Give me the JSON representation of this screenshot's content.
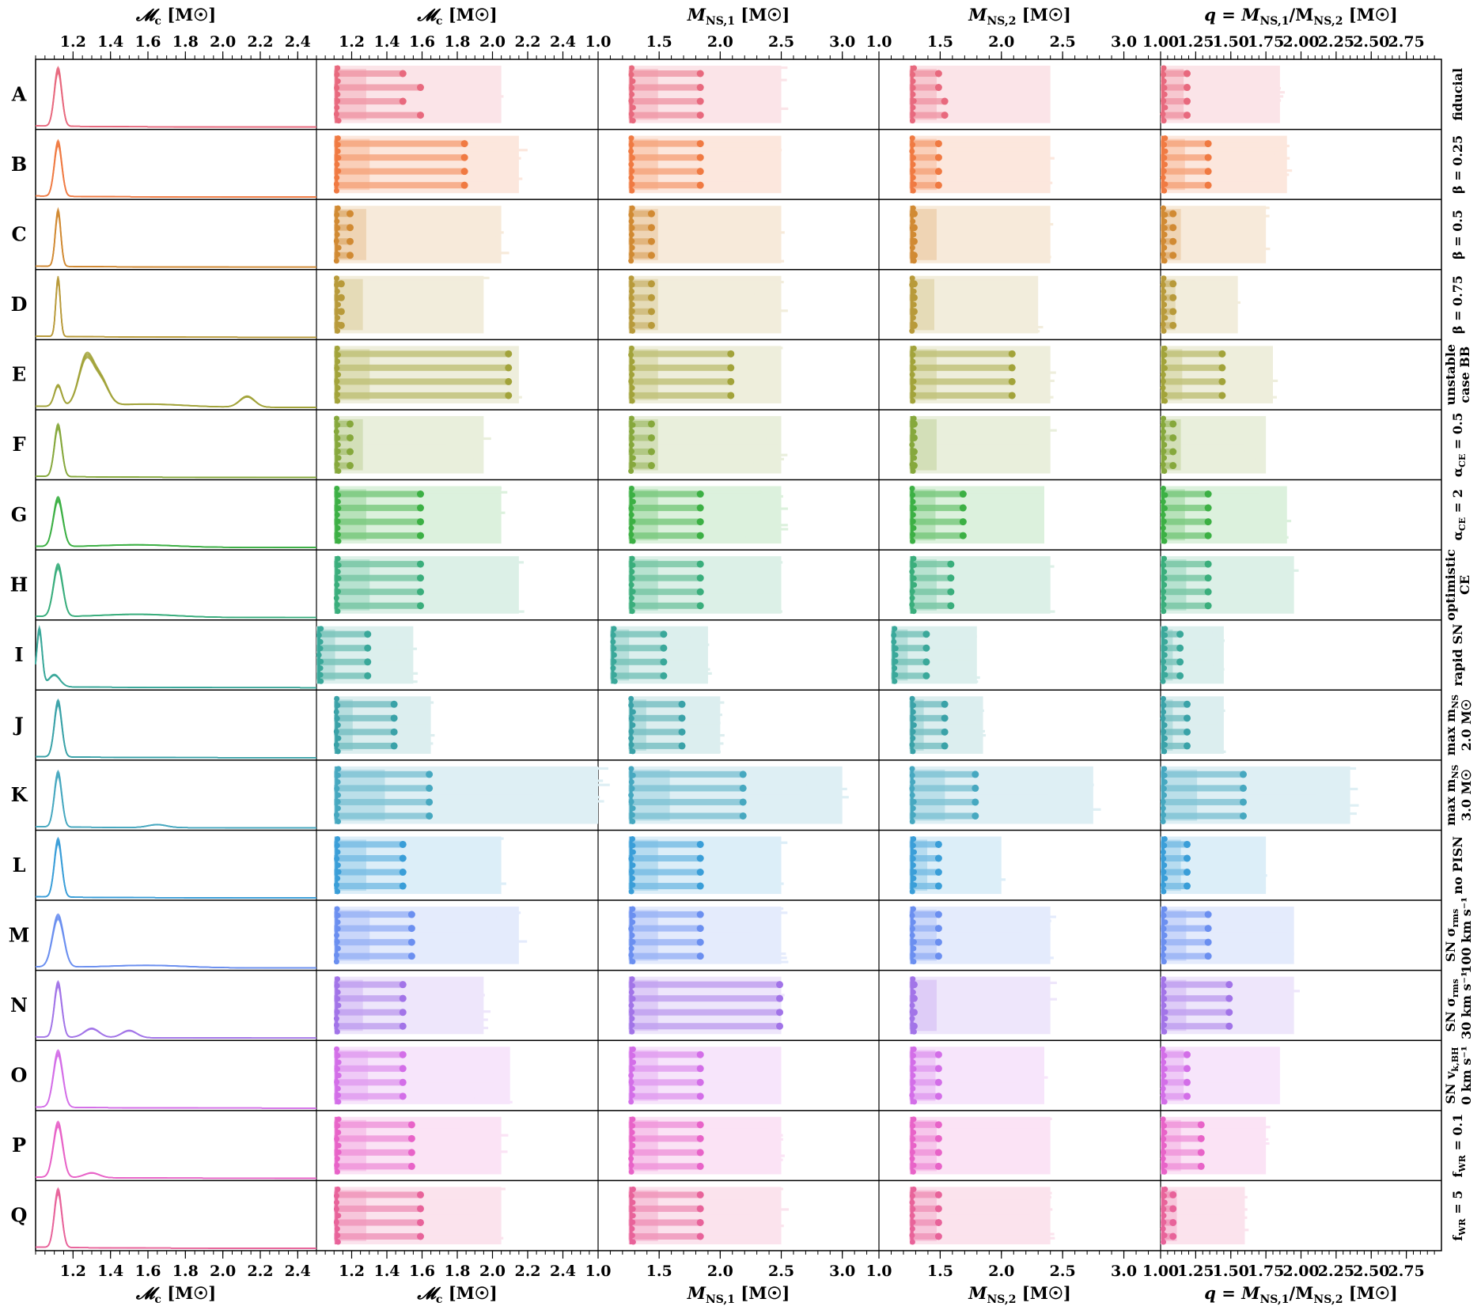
{
  "figure": {
    "rows": [
      {
        "letter": "A",
        "label_lines": [
          "fiducial"
        ],
        "color": "#e8697e",
        "peak": 1.12,
        "peak_height": 0.95,
        "spread": 0.02,
        "extra_peaks": [],
        "mc_range": [
          1.1,
          2.05
        ],
        "m1_range": [
          1.25,
          2.5
        ],
        "m2_range": [
          1.25,
          2.4
        ],
        "q_range": [
          1.0,
          1.85
        ],
        "m1_dot_x": 1.48,
        "m1_dot_x2": [
          1.48
        ],
        "bar_ends_mc": [
          1.5,
          1.6,
          1.5,
          1.6
        ],
        "bar_ends_m1": [
          1.85,
          1.85,
          1.85,
          1.85
        ],
        "bar_ends_m2": [
          1.5,
          1.5,
          1.55,
          1.55
        ],
        "bar_ends_q": [
          1.2,
          1.2,
          1.2,
          1.2
        ]
      },
      {
        "letter": "B",
        "label_lines": [
          "β = 0.25"
        ],
        "color": "#f07a42",
        "peak": 1.12,
        "peak_height": 0.9,
        "spread": 0.02,
        "extra_peaks": [],
        "mc_range": [
          1.1,
          2.15
        ],
        "m1_range": [
          1.25,
          2.5
        ],
        "m2_range": [
          1.25,
          2.4
        ],
        "q_range": [
          1.0,
          1.9
        ],
        "bar_ends_mc": [
          1.85,
          1.85,
          1.85,
          1.85
        ],
        "bar_ends_m1": [
          1.85,
          1.85,
          1.85,
          1.85
        ],
        "bar_ends_m2": [
          1.5,
          1.5,
          1.5,
          1.5
        ],
        "bar_ends_q": [
          1.35,
          1.35,
          1.35,
          1.35
        ]
      },
      {
        "letter": "C",
        "label_lines": [
          "β = 0.5"
        ],
        "color": "#d18a33",
        "peak": 1.12,
        "peak_height": 0.92,
        "spread": 0.015,
        "extra_peaks": [],
        "mc_range": [
          1.1,
          2.05
        ],
        "m1_range": [
          1.25,
          2.5
        ],
        "m2_range": [
          1.25,
          2.4
        ],
        "q_range": [
          1.0,
          1.75
        ],
        "bar_ends_mc": [
          1.2,
          1.2,
          1.2,
          1.2
        ],
        "bar_ends_m1": [
          1.45,
          1.45,
          1.45,
          1.45
        ],
        "bar_ends_m2": [
          1.3,
          1.3,
          1.3,
          1.3
        ],
        "bar_ends_q": [
          1.1,
          1.1,
          1.1,
          1.1
        ]
      },
      {
        "letter": "D",
        "label_lines": [
          "β = 0.75"
        ],
        "color": "#b89a3a",
        "peak": 1.12,
        "peak_height": 0.97,
        "spread": 0.012,
        "extra_peaks": [],
        "mc_range": [
          1.1,
          1.95
        ],
        "m1_range": [
          1.25,
          2.5
        ],
        "m2_range": [
          1.25,
          2.3
        ],
        "q_range": [
          1.0,
          1.55
        ],
        "bar_ends_mc": [
          1.15,
          1.15,
          1.15,
          1.15
        ],
        "bar_ends_m1": [
          1.45,
          1.45,
          1.45,
          1.45
        ],
        "bar_ends_m2": [
          1.3,
          1.3,
          1.3,
          1.3
        ],
        "bar_ends_q": [
          1.1,
          1.1,
          1.1,
          1.1
        ]
      },
      {
        "letter": "E",
        "label_lines": [
          "unstable",
          "case BB"
        ],
        "color": "#a2a33a",
        "peak": 1.27,
        "peak_height": 0.8,
        "spread": 0.04,
        "extra_peaks": [
          [
            1.12,
            0.35,
            0.02
          ],
          [
            1.35,
            0.4,
            0.04
          ],
          [
            2.13,
            0.18,
            0.04
          ],
          [
            1.6,
            0.05,
            0.2
          ]
        ],
        "mc_range": [
          1.1,
          2.15
        ],
        "m1_range": [
          1.25,
          2.5
        ],
        "m2_range": [
          1.25,
          2.4
        ],
        "q_range": [
          1.0,
          1.8
        ],
        "bar_ends_mc": [
          2.1,
          2.1,
          2.1,
          2.1
        ],
        "bar_ends_m1": [
          2.1,
          2.1,
          2.1,
          2.1
        ],
        "bar_ends_m2": [
          2.1,
          2.1,
          2.1,
          2.1
        ],
        "bar_ends_q": [
          1.45,
          1.45,
          1.45,
          1.45
        ]
      },
      {
        "letter": "F",
        "label_lines": [
          "α",
          "CE",
          " = 0.5"
        ],
        "color": "#86a83c",
        "peak": 1.12,
        "peak_height": 0.85,
        "spread": 0.02,
        "extra_peaks": [],
        "mc_range": [
          1.1,
          1.95
        ],
        "m1_range": [
          1.25,
          2.5
        ],
        "m2_range": [
          1.25,
          2.4
        ],
        "q_range": [
          1.0,
          1.75
        ],
        "bar_ends_mc": [
          1.2,
          1.2,
          1.2,
          1.2
        ],
        "bar_ends_m1": [
          1.45,
          1.45,
          1.45,
          1.45
        ],
        "bar_ends_m2": [
          1.3,
          1.3,
          1.3,
          1.3
        ],
        "bar_ends_q": [
          1.1,
          1.1,
          1.1,
          1.1
        ]
      },
      {
        "letter": "G",
        "label_lines": [
          "α",
          "CE",
          " = 2"
        ],
        "color": "#3cb044",
        "peak": 1.12,
        "peak_height": 0.8,
        "spread": 0.025,
        "extra_peaks": [
          [
            1.55,
            0.04,
            0.2
          ]
        ],
        "mc_range": [
          1.1,
          2.05
        ],
        "m1_range": [
          1.25,
          2.5
        ],
        "m2_range": [
          1.25,
          2.35
        ],
        "q_range": [
          1.0,
          1.9
        ],
        "bar_ends_mc": [
          1.6,
          1.6,
          1.6,
          1.6
        ],
        "bar_ends_m1": [
          1.85,
          1.85,
          1.85,
          1.85
        ],
        "bar_ends_m2": [
          1.7,
          1.7,
          1.7,
          1.7
        ],
        "bar_ends_q": [
          1.35,
          1.35,
          1.35,
          1.35
        ]
      },
      {
        "letter": "H",
        "label_lines": [
          "optimistic",
          "CE"
        ],
        "color": "#3aae7c",
        "peak": 1.12,
        "peak_height": 0.85,
        "spread": 0.025,
        "extra_peaks": [
          [
            1.55,
            0.05,
            0.2
          ]
        ],
        "mc_range": [
          1.1,
          2.15
        ],
        "m1_range": [
          1.25,
          2.5
        ],
        "m2_range": [
          1.25,
          2.4
        ],
        "q_range": [
          1.0,
          1.95
        ],
        "bar_ends_mc": [
          1.6,
          1.6,
          1.6,
          1.6
        ],
        "bar_ends_m1": [
          1.85,
          1.85,
          1.85,
          1.85
        ],
        "bar_ends_m2": [
          1.6,
          1.6,
          1.6,
          1.6
        ],
        "bar_ends_q": [
          1.35,
          1.35,
          1.35,
          1.35
        ]
      },
      {
        "letter": "I",
        "label_lines": [
          "rapid SN"
        ],
        "color": "#3aa89a",
        "peak": 1.02,
        "peak_height": 0.95,
        "spread": 0.015,
        "extra_peaks": [
          [
            1.1,
            0.2,
            0.03
          ]
        ],
        "mc_range": [
          1.0,
          1.55
        ],
        "m1_range": [
          1.1,
          1.9
        ],
        "m2_range": [
          1.1,
          1.8
        ],
        "q_range": [
          1.0,
          1.45
        ],
        "bar_ends_mc": [
          1.3,
          1.3,
          1.3,
          1.3
        ],
        "bar_ends_m1": [
          1.55,
          1.55,
          1.55,
          1.55
        ],
        "bar_ends_m2": [
          1.4,
          1.4,
          1.4,
          1.4
        ],
        "bar_ends_q": [
          1.15,
          1.15,
          1.15,
          1.15
        ]
      },
      {
        "letter": "J",
        "label_lines": [
          "max m",
          "NS",
          "2.0 M☉"
        ],
        "color": "#3aa2a8",
        "peak": 1.12,
        "peak_height": 0.92,
        "spread": 0.02,
        "extra_peaks": [],
        "mc_range": [
          1.1,
          1.65
        ],
        "m1_range": [
          1.25,
          2.0
        ],
        "m2_range": [
          1.25,
          1.85
        ],
        "q_range": [
          1.0,
          1.45
        ],
        "bar_ends_mc": [
          1.45,
          1.45,
          1.45,
          1.45
        ],
        "bar_ends_m1": [
          1.7,
          1.7,
          1.7,
          1.7
        ],
        "bar_ends_m2": [
          1.55,
          1.55,
          1.55,
          1.55
        ],
        "bar_ends_q": [
          1.2,
          1.2,
          1.2,
          1.2
        ]
      },
      {
        "letter": "K",
        "label_lines": [
          "max m",
          "NS",
          "3.0 M☉"
        ],
        "color": "#46a8c0",
        "peak": 1.12,
        "peak_height": 0.9,
        "spread": 0.02,
        "extra_peaks": [
          [
            1.65,
            0.05,
            0.05
          ]
        ],
        "mc_range": [
          1.1,
          2.6
        ],
        "m1_range": [
          1.25,
          3.0
        ],
        "m2_range": [
          1.25,
          2.75
        ],
        "q_range": [
          1.0,
          2.35
        ],
        "bar_ends_mc": [
          1.65,
          1.65,
          1.65,
          1.65
        ],
        "bar_ends_m1": [
          2.2,
          2.2,
          2.2,
          2.2
        ],
        "bar_ends_m2": [
          1.8,
          1.8,
          1.8,
          1.8
        ],
        "bar_ends_q": [
          1.6,
          1.6,
          1.6,
          1.6
        ]
      },
      {
        "letter": "L",
        "label_lines": [
          "no PISN"
        ],
        "color": "#3a9ed8",
        "peak": 1.12,
        "peak_height": 0.95,
        "spread": 0.02,
        "extra_peaks": [],
        "mc_range": [
          1.1,
          2.05
        ],
        "m1_range": [
          1.25,
          2.5
        ],
        "m2_range": [
          1.25,
          2.0
        ],
        "q_range": [
          1.0,
          1.75
        ],
        "bar_ends_mc": [
          1.5,
          1.5,
          1.5,
          1.5
        ],
        "bar_ends_m1": [
          1.85,
          1.85,
          1.85,
          1.85
        ],
        "bar_ends_m2": [
          1.5,
          1.5,
          1.5,
          1.5
        ],
        "bar_ends_q": [
          1.2,
          1.2,
          1.2,
          1.2
        ]
      },
      {
        "letter": "M",
        "label_lines": [
          "SN σ",
          "rms",
          "100 km s⁻¹"
        ],
        "color": "#6b8ff0",
        "peak": 1.12,
        "peak_height": 0.85,
        "spread": 0.03,
        "extra_peaks": [
          [
            1.6,
            0.04,
            0.2
          ]
        ],
        "mc_range": [
          1.1,
          2.15
        ],
        "m1_range": [
          1.25,
          2.5
        ],
        "m2_range": [
          1.25,
          2.4
        ],
        "q_range": [
          1.0,
          1.95
        ],
        "bar_ends_mc": [
          1.55,
          1.55,
          1.55,
          1.55
        ],
        "bar_ends_m1": [
          1.85,
          1.85,
          1.85,
          1.85
        ],
        "bar_ends_m2": [
          1.5,
          1.5,
          1.5,
          1.5
        ],
        "bar_ends_q": [
          1.35,
          1.35,
          1.35,
          1.35
        ]
      },
      {
        "letter": "N",
        "label_lines": [
          "SN σ",
          "rms",
          "30 km s⁻¹"
        ],
        "color": "#a274e8",
        "peak": 1.12,
        "peak_height": 0.9,
        "spread": 0.02,
        "extra_peaks": [
          [
            1.3,
            0.15,
            0.04
          ],
          [
            1.5,
            0.12,
            0.04
          ]
        ],
        "mc_range": [
          1.1,
          1.95
        ],
        "m1_range": [
          1.25,
          2.5
        ],
        "m2_range": [
          1.25,
          2.4
        ],
        "q_range": [
          1.0,
          1.95
        ],
        "bar_ends_mc": [
          1.5,
          1.5,
          1.5,
          1.5
        ],
        "bar_ends_m1": [
          2.5,
          2.5,
          2.5,
          2.5
        ],
        "bar_ends_m2": [
          1.3,
          1.3,
          1.3,
          1.3
        ],
        "bar_ends_q": [
          1.5,
          1.5,
          1.5,
          1.5
        ]
      },
      {
        "letter": "O",
        "label_lines": [
          "SN v",
          "k,BH",
          "0 km s⁻¹"
        ],
        "color": "#d36ee8",
        "peak": 1.12,
        "peak_height": 0.92,
        "spread": 0.025,
        "extra_peaks": [],
        "mc_range": [
          1.1,
          2.1
        ],
        "m1_range": [
          1.25,
          2.5
        ],
        "m2_range": [
          1.25,
          2.35
        ],
        "q_range": [
          1.0,
          1.85
        ],
        "bar_ends_mc": [
          1.5,
          1.5,
          1.5,
          1.5
        ],
        "bar_ends_m1": [
          1.85,
          1.85,
          1.85,
          1.85
        ],
        "bar_ends_m2": [
          1.5,
          1.5,
          1.5,
          1.5
        ],
        "bar_ends_q": [
          1.2,
          1.2,
          1.2,
          1.2
        ]
      },
      {
        "letter": "P",
        "label_lines": [
          "f",
          "WR",
          " = 0.1"
        ],
        "color": "#e863c8",
        "peak": 1.12,
        "peak_height": 0.9,
        "spread": 0.025,
        "extra_peaks": [
          [
            1.3,
            0.08,
            0.04
          ]
        ],
        "mc_range": [
          1.1,
          2.05
        ],
        "m1_range": [
          1.25,
          2.5
        ],
        "m2_range": [
          1.25,
          2.4
        ],
        "q_range": [
          1.0,
          1.75
        ],
        "bar_ends_mc": [
          1.55,
          1.55,
          1.55,
          1.55
        ],
        "bar_ends_m1": [
          1.85,
          1.85,
          1.85,
          1.85
        ],
        "bar_ends_m2": [
          1.5,
          1.5,
          1.5,
          1.5
        ],
        "bar_ends_q": [
          1.3,
          1.3,
          1.3,
          1.3
        ]
      },
      {
        "letter": "Q",
        "label_lines": [
          "f",
          "WR",
          " = 5"
        ],
        "color": "#e8639a",
        "peak": 1.12,
        "peak_height": 0.95,
        "spread": 0.02,
        "extra_peaks": [],
        "mc_range": [
          1.1,
          2.05
        ],
        "m1_range": [
          1.25,
          2.5
        ],
        "m2_range": [
          1.25,
          2.4
        ],
        "q_range": [
          1.0,
          1.6
        ],
        "bar_ends_mc": [
          1.6,
          1.6,
          1.6,
          1.6
        ],
        "bar_ends_m1": [
          1.85,
          1.85,
          1.85,
          1.85
        ],
        "bar_ends_m2": [
          1.5,
          1.5,
          1.5,
          1.5
        ],
        "bar_ends_q": [
          1.1,
          1.1,
          1.1,
          1.1
        ]
      }
    ]
  },
  "chart_data": [
    {
      "type": "line",
      "title": "",
      "xlabel": "𝓜c [M☉]",
      "ylabel": "",
      "xlim": [
        1.0,
        2.5
      ],
      "xticks": [
        "1.2",
        "1.4",
        "1.6",
        "1.8",
        "2.0",
        "2.2",
        "2.4"
      ],
      "description_of_content": "per-row density of chirp mass"
    },
    {
      "type": "bar",
      "title": "",
      "xlabel": "𝓜c [M☉]",
      "xlim": [
        1.0,
        2.6
      ],
      "xticks": [
        "1.2",
        "1.4",
        "1.6",
        "1.8",
        "2.0",
        "2.2",
        "2.4"
      ]
    },
    {
      "type": "bar",
      "title": "",
      "xlabel": "MNS,1 [M☉]",
      "xlim": [
        1.0,
        3.1
      ],
      "xticks": [
        "1.0",
        "1.5",
        "2.0",
        "2.5",
        "3.0"
      ]
    },
    {
      "type": "bar",
      "title": "",
      "xlabel": "MNS,2 [M☉]",
      "xlim": [
        1.0,
        3.1
      ],
      "xticks": [
        "1.0",
        "1.5",
        "2.0",
        "2.5",
        "3.0"
      ]
    },
    {
      "type": "bar",
      "title": "",
      "xlabel": "q = MNS,1/MNS,2 [M☉]",
      "xlim": [
        1.0,
        3.0
      ],
      "xticks": [
        "1.00",
        "1.25",
        "1.50",
        "1.75",
        "2.00",
        "2.25",
        "2.50",
        "2.75"
      ]
    }
  ],
  "columns": [
    {
      "label_pre": "𝓜",
      "label_sub": "c",
      "label_post": " [M☉]"
    },
    {
      "label_pre": "𝓜",
      "label_sub": "c",
      "label_post": " [M☉]"
    },
    {
      "label_pre": "M",
      "label_sub": "NS,1",
      "label_post": " [M☉]"
    },
    {
      "label_pre": "M",
      "label_sub": "NS,2",
      "label_post": " [M☉]"
    },
    {
      "label_pre": "q = M",
      "label_sub": "NS,1",
      "label_post": "/M",
      "label_sub2": "NS,2",
      "label_post2": " [M☉]"
    }
  ]
}
